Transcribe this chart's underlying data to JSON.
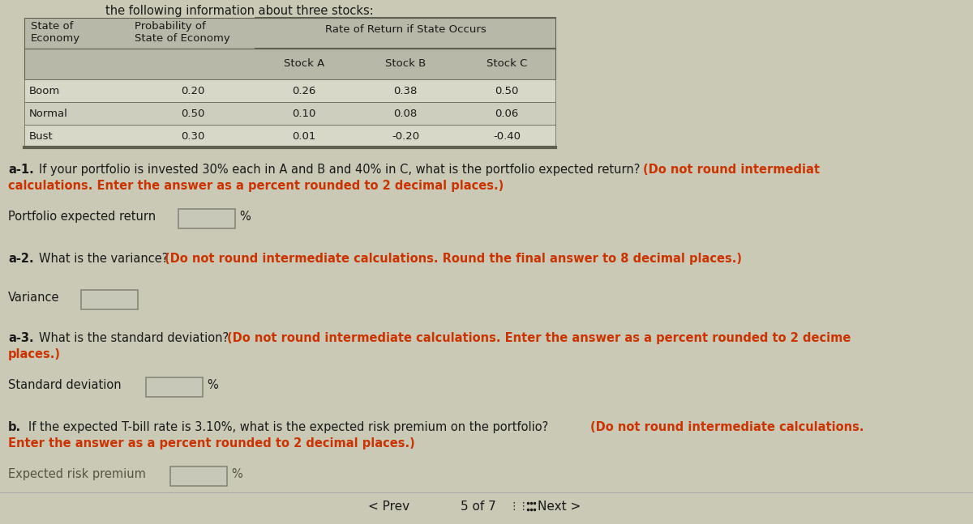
{
  "bg_color": "#c9c9b5",
  "text_color": "#1a1a1a",
  "text_color_orange": "#cc3300",
  "table_header_bg": "#b8b8a8",
  "table_row_bg1": "#d8d8c8",
  "table_row_bg2": "#cecebe",
  "table_border_dark": "#606050",
  "input_bg": "#c8c8b8",
  "input_border": "#888878",
  "top_partial_text": "the following information about three stocks:",
  "table_rows": [
    [
      "Boom",
      "0.20",
      "0.26",
      "0.38",
      "0.50"
    ],
    [
      "Normal",
      "0.50",
      "0.10",
      "0.08",
      "0.06"
    ],
    [
      "Bust",
      "0.30",
      "0.01",
      "-0.20",
      "-0.40"
    ]
  ],
  "footer_prev": "< Prev",
  "footer_page": "5 of 7",
  "footer_next": "Next >"
}
